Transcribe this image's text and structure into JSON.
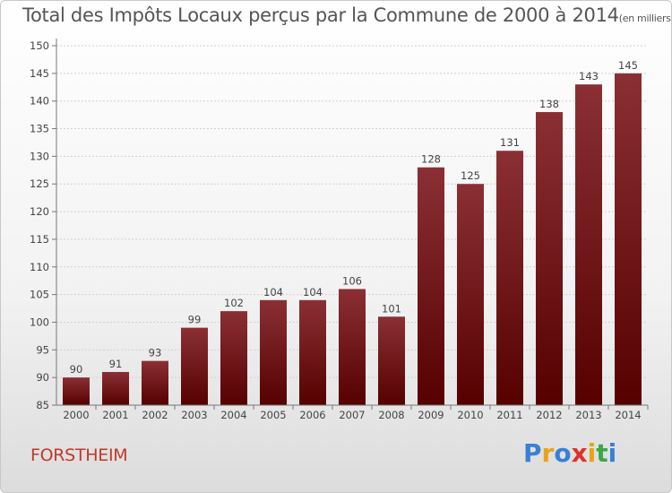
{
  "header": {
    "title": "Total des Impôts Locaux perçus par la Commune de 2000 à 2014",
    "unit": "(en milliers d'€)"
  },
  "footer": {
    "commune": "FORSTHEIM",
    "brand": [
      "P",
      "r",
      "o",
      "x",
      "i",
      "t",
      "i"
    ],
    "brand_colors": [
      "#3a7fd5",
      "#e8a317",
      "#3a7fd5",
      "#d9342b",
      "#e8a317",
      "#3aa845",
      "#3a7fd5"
    ]
  },
  "colors": {
    "bar_top": "#8a3035",
    "bar_bottom": "#560000",
    "grid": "#d0d0d0",
    "axis": "#777777"
  },
  "chart_data": {
    "type": "bar",
    "title": "Total des Impôts Locaux perçus par la Commune de 2000 à 2014",
    "xlabel": "",
    "ylabel": "",
    "ylim": [
      85,
      150
    ],
    "yticks": [
      85,
      90,
      95,
      100,
      105,
      110,
      115,
      120,
      125,
      130,
      135,
      140,
      145,
      150
    ],
    "grid": true,
    "categories": [
      "2000",
      "2001",
      "2002",
      "2003",
      "2004",
      "2005",
      "2006",
      "2007",
      "2008",
      "2009",
      "2010",
      "2011",
      "2012",
      "2013",
      "2014"
    ],
    "values": [
      90,
      91,
      93,
      99,
      102,
      104,
      104,
      106,
      101,
      128,
      125,
      131,
      138,
      143,
      145
    ]
  }
}
